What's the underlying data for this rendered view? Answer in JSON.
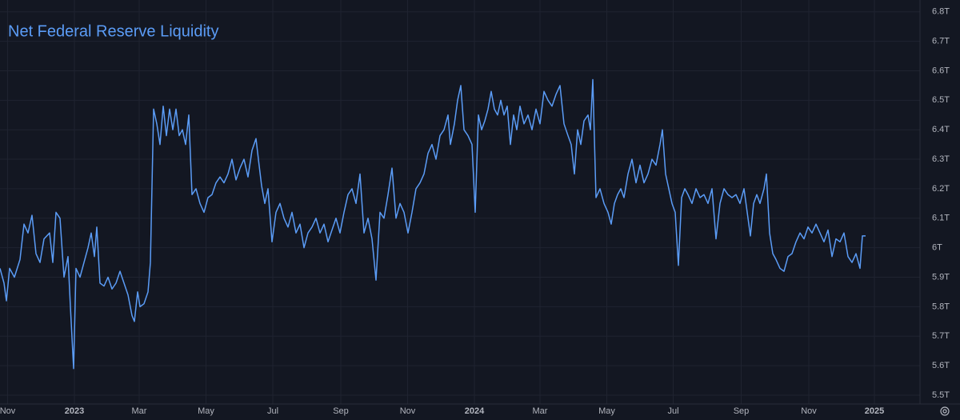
{
  "chart_data": {
    "type": "line",
    "title": "Net Federal Reserve Liquidity",
    "color": "#5b9cf6",
    "grid": true,
    "xlim": [
      2022.814,
      2025.114
    ],
    "xticks": [
      {
        "value": 2022.833,
        "label": "Nov"
      },
      2023,
      {
        "value": 2023.162,
        "label": "Mar"
      },
      {
        "value": 2023.329,
        "label": "May"
      },
      {
        "value": 2023.496,
        "label": "Jul"
      },
      {
        "value": 2023.666,
        "label": "Sep"
      },
      {
        "value": 2023.833,
        "label": "Nov"
      },
      2024,
      {
        "value": 2024.164,
        "label": "Mar"
      },
      {
        "value": 2024.331,
        "label": "May"
      },
      {
        "value": 2024.497,
        "label": "Jul"
      },
      {
        "value": 2024.667,
        "label": "Sep"
      },
      {
        "value": 2024.836,
        "label": "Nov"
      },
      2025
    ],
    "ylim": [
      5.47,
      6.84
    ],
    "yticks": [
      {
        "value": 5.5,
        "label": "5.5T"
      },
      {
        "value": 5.6,
        "label": "5.6T"
      },
      {
        "value": 5.7,
        "label": "5.7T"
      },
      {
        "value": 5.8,
        "label": "5.8T"
      },
      {
        "value": 5.9,
        "label": "5.9T"
      },
      {
        "value": 6,
        "label": "6T"
      },
      {
        "value": 6.1,
        "label": "6.1T"
      },
      {
        "value": 6.2,
        "label": "6.2T"
      },
      {
        "value": 6.3,
        "label": "6.3T"
      },
      {
        "value": 6.4,
        "label": "6.4T"
      },
      {
        "value": 6.5,
        "label": "6.5T"
      },
      {
        "value": 6.6,
        "label": "6.6T"
      },
      {
        "value": 6.7,
        "label": "6.7T"
      },
      {
        "value": 6.8,
        "label": "6.8T"
      }
    ],
    "x": [
      2022.814,
      2022.824,
      2022.83,
      2022.838,
      2022.85,
      2022.864,
      2022.874,
      2022.884,
      2022.894,
      2022.904,
      2022.914,
      2022.924,
      2022.938,
      2022.946,
      2022.954,
      2022.964,
      2022.974,
      2022.984,
      2022.99,
      2022.998,
      2023.004,
      2023.014,
      2023.024,
      2023.034,
      2023.042,
      2023.05,
      2023.056,
      2023.064,
      2023.074,
      2023.084,
      2023.094,
      2023.104,
      2023.114,
      2023.124,
      2023.134,
      2023.144,
      2023.15,
      2023.158,
      2023.164,
      2023.174,
      2023.184,
      2023.19,
      2023.198,
      2023.206,
      2023.214,
      2023.222,
      2023.23,
      2023.238,
      2023.246,
      2023.254,
      2023.262,
      2023.27,
      2023.278,
      2023.286,
      2023.294,
      2023.304,
      2023.314,
      2023.324,
      2023.334,
      2023.344,
      2023.354,
      2023.364,
      2023.374,
      2023.384,
      2023.394,
      2023.404,
      2023.414,
      2023.424,
      2023.434,
      2023.444,
      2023.454,
      2023.46,
      2023.468,
      2023.476,
      2023.484,
      2023.494,
      2023.504,
      2023.514,
      2023.524,
      2023.534,
      2023.544,
      2023.554,
      2023.564,
      2023.574,
      2023.584,
      2023.594,
      2023.604,
      2023.614,
      2023.624,
      2023.634,
      2023.644,
      2023.654,
      2023.664,
      2023.674,
      2023.684,
      2023.694,
      2023.704,
      2023.714,
      2023.724,
      2023.734,
      2023.744,
      2023.754,
      2023.764,
      2023.774,
      2023.784,
      2023.794,
      2023.804,
      2023.814,
      2023.824,
      2023.834,
      2023.844,
      2023.854,
      2023.864,
      2023.874,
      2023.884,
      2023.894,
      2023.904,
      2023.914,
      2023.924,
      2023.934,
      2023.94,
      2023.95,
      2023.958,
      2023.966,
      2023.974,
      2023.984,
      2023.994,
      2024.002,
      2024.01,
      2024.018,
      2024.026,
      2024.034,
      2024.042,
      2024.05,
      2024.058,
      2024.066,
      2024.074,
      2024.082,
      2024.09,
      2024.098,
      2024.106,
      2024.114,
      2024.124,
      2024.134,
      2024.144,
      2024.154,
      2024.164,
      2024.174,
      2024.184,
      2024.194,
      2024.204,
      2024.214,
      2024.224,
      2024.234,
      2024.242,
      2024.25,
      2024.258,
      2024.266,
      2024.274,
      2024.284,
      2024.29,
      2024.296,
      2024.304,
      2024.314,
      2024.324,
      2024.334,
      2024.342,
      2024.35,
      2024.358,
      2024.366,
      2024.374,
      2024.384,
      2024.394,
      2024.404,
      2024.414,
      2024.424,
      2024.434,
      2024.444,
      2024.454,
      2024.464,
      2024.47,
      2024.478,
      2024.486,
      2024.494,
      2024.502,
      2024.51,
      2024.518,
      2024.526,
      2024.534,
      2024.544,
      2024.554,
      2024.564,
      2024.574,
      2024.584,
      2024.594,
      2024.604,
      2024.614,
      2024.624,
      2024.634,
      2024.644,
      2024.654,
      2024.664,
      2024.674,
      2024.684,
      2024.69,
      2024.698,
      2024.706,
      2024.714,
      2024.724,
      2024.73,
      2024.738,
      2024.746,
      2024.754,
      2024.764,
      2024.774,
      2024.784,
      2024.794,
      2024.804,
      2024.814,
      2024.824,
      2024.834,
      2024.844,
      2024.854,
      2024.864,
      2024.874,
      2024.884,
      2024.894,
      2024.904,
      2024.914,
      2024.924,
      2024.934,
      2024.944,
      2024.954,
      2024.964,
      2024.97,
      2024.978
    ],
    "values": [
      5.93,
      5.88,
      5.82,
      5.93,
      5.9,
      5.96,
      6.08,
      6.05,
      6.11,
      5.98,
      5.95,
      6.03,
      6.05,
      5.95,
      6.12,
      6.1,
      5.9,
      5.97,
      5.8,
      5.59,
      5.93,
      5.9,
      5.95,
      6.0,
      6.05,
      5.97,
      6.07,
      5.88,
      5.87,
      5.9,
      5.86,
      5.88,
      5.92,
      5.88,
      5.84,
      5.77,
      5.75,
      5.85,
      5.8,
      5.81,
      5.85,
      5.95,
      6.47,
      6.42,
      6.35,
      6.48,
      6.38,
      6.47,
      6.4,
      6.47,
      6.38,
      6.4,
      6.35,
      6.45,
      6.18,
      6.2,
      6.15,
      6.12,
      6.17,
      6.18,
      6.22,
      6.24,
      6.22,
      6.25,
      6.3,
      6.23,
      6.27,
      6.3,
      6.24,
      6.33,
      6.37,
      6.3,
      6.21,
      6.15,
      6.2,
      6.02,
      6.12,
      6.15,
      6.1,
      6.07,
      6.12,
      6.05,
      6.08,
      6.0,
      6.05,
      6.07,
      6.1,
      6.05,
      6.08,
      6.02,
      6.06,
      6.1,
      6.05,
      6.12,
      6.18,
      6.2,
      6.15,
      6.25,
      6.05,
      6.1,
      6.03,
      5.89,
      6.12,
      6.1,
      6.18,
      6.27,
      6.1,
      6.15,
      6.12,
      6.05,
      6.12,
      6.2,
      6.22,
      6.25,
      6.32,
      6.35,
      6.3,
      6.38,
      6.4,
      6.45,
      6.35,
      6.42,
      6.5,
      6.55,
      6.4,
      6.38,
      6.35,
      6.12,
      6.45,
      6.4,
      6.43,
      6.47,
      6.53,
      6.47,
      6.45,
      6.5,
      6.45,
      6.48,
      6.35,
      6.45,
      6.4,
      6.48,
      6.42,
      6.45,
      6.4,
      6.47,
      6.42,
      6.53,
      6.5,
      6.48,
      6.52,
      6.55,
      6.42,
      6.38,
      6.35,
      6.25,
      6.4,
      6.35,
      6.43,
      6.45,
      6.4,
      6.57,
      6.17,
      6.2,
      6.15,
      6.12,
      6.08,
      6.15,
      6.18,
      6.2,
      6.17,
      6.25,
      6.3,
      6.22,
      6.28,
      6.22,
      6.25,
      6.3,
      6.28,
      6.35,
      6.4,
      6.25,
      6.2,
      6.15,
      6.12,
      5.94,
      6.17,
      6.2,
      6.18,
      6.15,
      6.2,
      6.17,
      6.18,
      6.15,
      6.2,
      6.03,
      6.15,
      6.2,
      6.18,
      6.17,
      6.18,
      6.15,
      6.2,
      6.1,
      6.04,
      6.15,
      6.18,
      6.15,
      6.2,
      6.25,
      6.05,
      5.98,
      5.96,
      5.93,
      5.92,
      5.97,
      5.98,
      6.02,
      6.05,
      6.03,
      6.07,
      6.05,
      6.08,
      6.05,
      6.02,
      6.06,
      5.97,
      6.03,
      6.02,
      6.05,
      5.97,
      5.95,
      5.98,
      5.93,
      6.04,
      6.04
    ]
  }
}
